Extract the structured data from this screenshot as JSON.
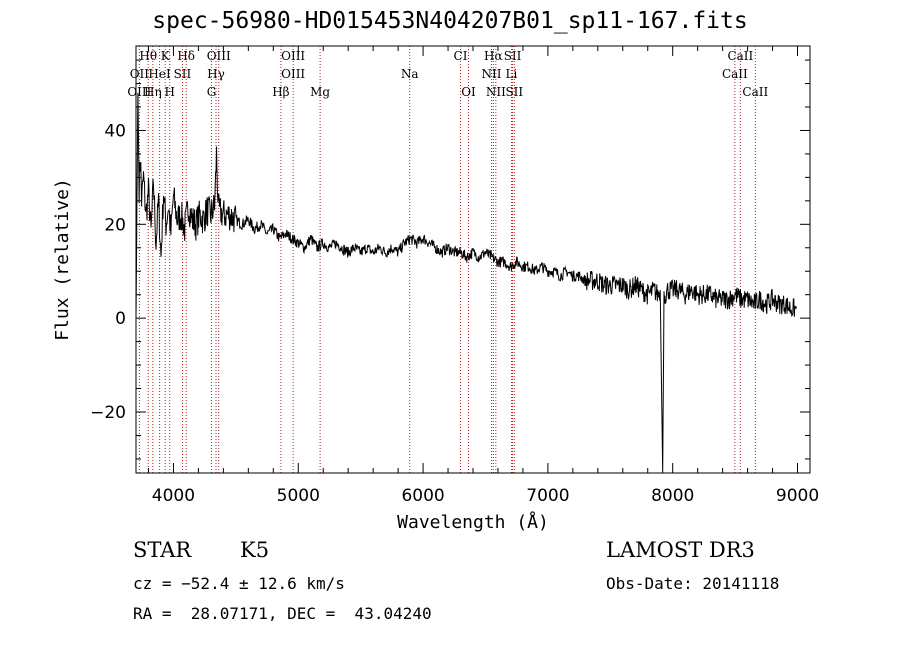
{
  "header": {
    "title": "spec-56980-HD015453N404207B01_sp11-167.fits"
  },
  "info": {
    "class": "STAR",
    "subclass": "K5",
    "survey": "LAMOST DR3",
    "cz": "cz = −52.4 ± 12.6 km/s",
    "obs_date": "Obs-Date: 20141118",
    "radec": "RA =  28.07171, DEC =  43.04240"
  },
  "chart_data": {
    "type": "line",
    "title": "spec-56980-HD015453N404207B01_sp11-167.fits",
    "xlabel": "Wavelength (Å)",
    "ylabel": "Flux (relative)",
    "xlim": [
      3700,
      9100
    ],
    "ylim": [
      -33,
      58
    ],
    "xticks": [
      4000,
      5000,
      6000,
      7000,
      8000,
      9000
    ],
    "yticks": [
      -20,
      0,
      20,
      40
    ],
    "ytick_labels": [
      "−20",
      "0",
      "20",
      "40"
    ],
    "line_color": "#000000",
    "marker_color": "#b22222",
    "grid": false,
    "series": [
      {
        "x": [
          3700,
          3715,
          3725,
          3735,
          3745,
          3760,
          3780,
          3800,
          3820,
          3840,
          3860,
          3880,
          3900,
          3920,
          3940,
          3960,
          3980,
          4000,
          4030,
          4060,
          4090,
          4120,
          4150,
          4180,
          4210,
          4240,
          4270,
          4300,
          4330,
          4345,
          4360,
          4400,
          4450,
          4500,
          4550,
          4600,
          4650,
          4700,
          4750,
          4800,
          4850,
          4900,
          4950,
          5000,
          5050,
          5100,
          5150,
          5200,
          5250,
          5300,
          5350,
          5400,
          5450,
          5500,
          5550,
          5600,
          5650,
          5700,
          5750,
          5800,
          5850,
          5900,
          5950,
          6000,
          6050,
          6100,
          6150,
          6200,
          6250,
          6300,
          6350,
          6400,
          6450,
          6500,
          6550,
          6600,
          6650,
          6700,
          6750,
          6800,
          6850,
          6900,
          6950,
          7000,
          7050,
          7100,
          7150,
          7200,
          7250,
          7300,
          7350,
          7400,
          7450,
          7500,
          7550,
          7600,
          7650,
          7700,
          7750,
          7800,
          7850,
          7880,
          7900,
          7920,
          7930,
          7940,
          7960,
          8000,
          8050,
          8100,
          8150,
          8200,
          8250,
          8300,
          8350,
          8400,
          8450,
          8500,
          8550,
          8600,
          8650,
          8700,
          8750,
          8800,
          8850,
          8900,
          8950,
          8990
        ],
        "values": [
          0,
          48,
          28,
          35,
          25,
          30,
          22,
          27,
          18,
          29,
          16,
          25,
          13,
          27,
          20,
          24,
          18,
          26,
          21,
          22,
          19,
          24,
          21,
          20,
          22,
          21,
          23,
          22,
          24,
          35,
          23,
          22,
          22,
          21,
          20,
          21,
          19,
          20,
          18,
          19,
          17,
          18,
          17,
          16,
          15,
          17,
          15,
          16,
          15,
          16,
          15,
          14,
          15,
          14,
          15,
          14,
          15,
          14,
          15,
          14,
          16,
          17,
          16,
          17,
          16,
          15,
          14,
          15,
          14,
          14,
          13,
          14,
          13,
          14,
          13,
          12,
          12,
          11,
          12,
          11,
          11,
          10,
          11,
          10,
          10,
          9,
          10,
          9,
          9,
          8,
          8,
          8,
          7,
          7,
          7,
          7,
          6,
          7,
          6,
          5,
          6,
          5,
          6,
          -33,
          5,
          5,
          6,
          6,
          6,
          5,
          6,
          5,
          5,
          5,
          4,
          4,
          4,
          5,
          4,
          4,
          3,
          4,
          3,
          4,
          3,
          3,
          2,
          2
        ]
      }
    ],
    "lines_top": [
      {
        "label": "Hθ",
        "x": 3798
      },
      {
        "label": "K",
        "x": 3934
      },
      {
        "label": "Hδ",
        "x": 4102
      },
      {
        "label": "OIII",
        "x": 4363
      },
      {
        "label": "OIII",
        "x": 4959
      },
      {
        "label": "CI",
        "x": 6300
      },
      {
        "label": "Hα",
        "x": 6563
      },
      {
        "label": "SII",
        "x": 6717
      },
      {
        "label": "CaII",
        "x": 8542
      }
    ],
    "lines_mid": [
      {
        "label": "OII",
        "x": 3727
      },
      {
        "label": "HeI",
        "x": 3889
      },
      {
        "label": "SII",
        "x": 4072
      },
      {
        "label": "Hγ",
        "x": 4341
      },
      {
        "label": "OIII",
        "x": 4959
      },
      {
        "label": "Na",
        "x": 5893
      },
      {
        "label": "NII",
        "x": 6548
      },
      {
        "label": "Li",
        "x": 6708
      },
      {
        "label": "CaII",
        "x": 8498
      }
    ],
    "lines_bot": [
      {
        "label": "OIII",
        "x": 3727
      },
      {
        "label": "Hη",
        "x": 3835
      },
      {
        "label": "H",
        "x": 3970
      },
      {
        "label": "G",
        "x": 4305
      },
      {
        "label": "Hβ",
        "x": 4861
      },
      {
        "label": "Mg",
        "x": 5175
      },
      {
        "label": "OI",
        "x": 6364
      },
      {
        "label": "NII",
        "x": 6583
      },
      {
        "label": "SII",
        "x": 6731
      },
      {
        "label": "CaII",
        "x": 8662
      }
    ]
  }
}
